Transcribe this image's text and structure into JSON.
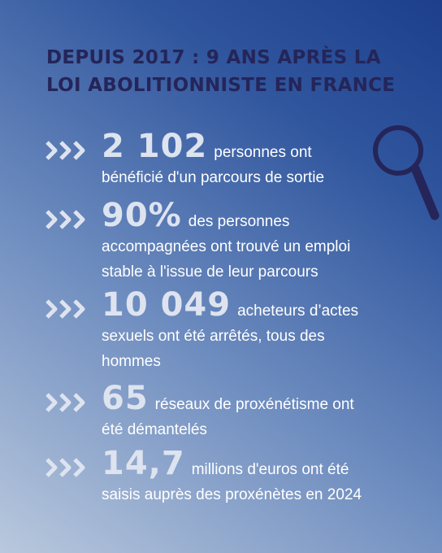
{
  "header": {
    "title_lines": [
      "DEPUIS 2017 : 9 ANS APRÈS LA",
      "LOI ABOLITIONNISTE EN FRANCE"
    ]
  },
  "items": [
    {
      "number": "2 102",
      "lines": [
        "personnes ont",
        "bénéficié d'un parcours de sortie"
      ]
    },
    {
      "number": "90%",
      "lines": [
        "des personnes",
        "accompagnées ont trouvé un emploi",
        "stable à l'issue de leur parcours"
      ]
    },
    {
      "number": "10 049",
      "lines": [
        "acheteurs d’actes",
        "sexuels ont été arrêtés, tous des",
        "hommes"
      ]
    },
    {
      "number": "65",
      "lines": [
        "réseaux de proxénétisme ont",
        "été démantelés"
      ]
    },
    {
      "number": "14,7",
      "lines": [
        "millions d'euros ont été",
        "saisis auprès des proxénètes en 2024"
      ]
    }
  ]
}
